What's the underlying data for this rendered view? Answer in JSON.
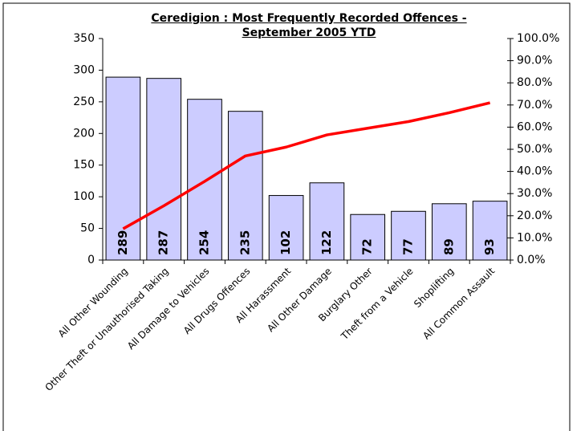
{
  "chart_data": {
    "type": "bar_line",
    "title": "Ceredigion : Most Frequently Recorded Offences - September 2005 YTD",
    "categories": [
      "All Other Wounding",
      "Other Theft or Unauthorised Taking",
      "All Damage to Vehicles",
      "All Drugs Offences",
      "All Harassment",
      "All Other Damage",
      "Burglary Other",
      "Theft from a Vehicle",
      "Shoplifting",
      "All Common Assault"
    ],
    "series": [
      {
        "type": "bar",
        "color": "#ccccff",
        "values": [
          289,
          287,
          254,
          235,
          102,
          122,
          72,
          77,
          89,
          93
        ]
      },
      {
        "type": "line",
        "axis": "y2",
        "color": "#ff0000",
        "values": [
          14.1,
          24.5,
          35.5,
          47,
          51,
          56.5,
          59.5,
          62.5,
          66.5,
          71
        ]
      }
    ],
    "ylim": [
      0,
      350
    ],
    "yticks": [
      0,
      50,
      100,
      150,
      200,
      250,
      300,
      350
    ],
    "y2lim": [
      0,
      100
    ],
    "y2ticks": [
      {
        "value": 0,
        "label": "0.0%"
      },
      {
        "value": 10,
        "label": "10.0%"
      },
      {
        "value": 20,
        "label": "20.0%"
      },
      {
        "value": 30,
        "label": "30.0%"
      },
      {
        "value": 40,
        "label": "40.0%"
      },
      {
        "value": 50,
        "label": "50.0%"
      },
      {
        "value": 60,
        "label": "60.0%"
      },
      {
        "value": 70,
        "label": "70.0%"
      },
      {
        "value": 80,
        "label": "80.0%"
      },
      {
        "value": 90,
        "label": "90.0%"
      },
      {
        "value": 100,
        "label": "100.0%"
      }
    ]
  }
}
